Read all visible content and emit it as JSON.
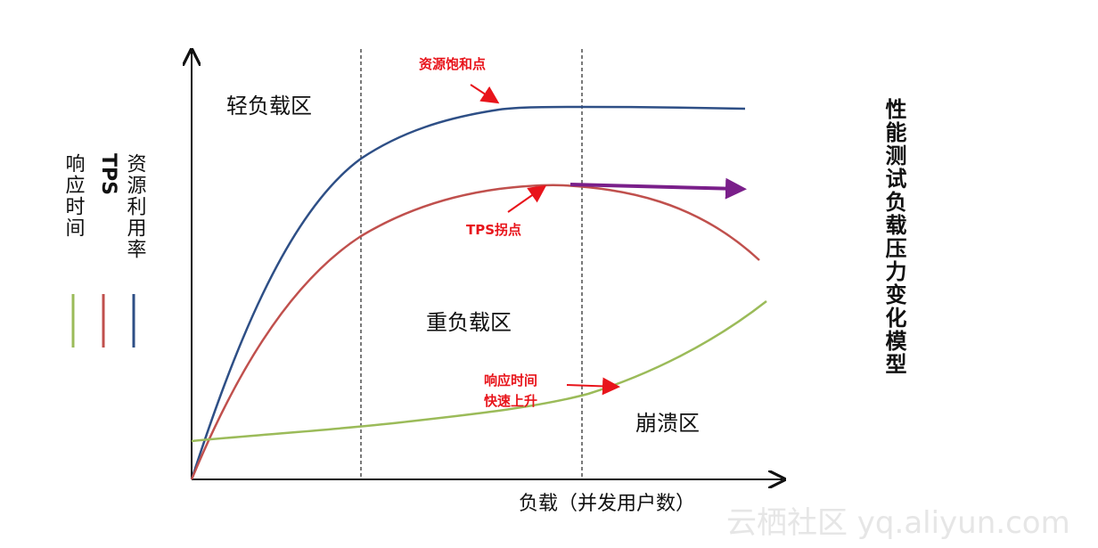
{
  "zones": {
    "light": "轻负载区",
    "heavy": "重负载区",
    "crash": "崩溃区"
  },
  "annotations": {
    "saturation": "资源饱和点",
    "tps_turn": "TPS拐点",
    "response_line1": "响应时间",
    "response_line2": "快速上升"
  },
  "x_axis_label": "负载（并发用户数）",
  "legend": {
    "resource": "资源利用率",
    "tps": "TPS",
    "response": "响应时间"
  },
  "title_vertical": "性能测试负载压力变化模型",
  "watermark": "云栖社区 yq.aliyun.com",
  "colors": {
    "resource": "#2e4f86",
    "tps": "#c0504d",
    "response": "#9bbb59",
    "arrow_purple": "#7a1f8a",
    "annotation_red": "#e8141b"
  }
}
